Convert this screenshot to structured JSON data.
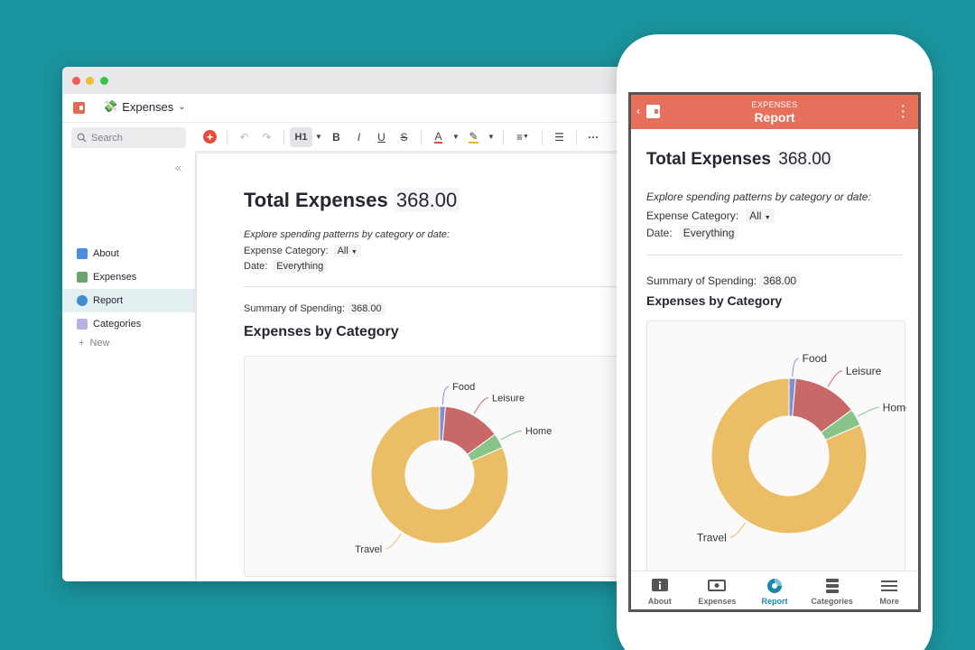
{
  "desktop": {
    "doc_title": "Expenses",
    "search_placeholder": "Search",
    "pages": [
      {
        "label": "About"
      },
      {
        "label": "Expenses"
      },
      {
        "label": "Report"
      },
      {
        "label": "Categories"
      }
    ],
    "new_label": "New",
    "toolbar": {
      "heading": "H1",
      "bold": "B",
      "italic": "I",
      "underline": "U",
      "strike": "S",
      "more": "···"
    }
  },
  "report": {
    "title": "Total Expenses",
    "total": "368.00",
    "intro": "Explore spending patterns by category or date:",
    "category_label": "Expense Category:",
    "category_value": "All",
    "date_label": "Date:",
    "date_value": "Everything",
    "summary_label": "Summary of Spending:",
    "summary_value": "368.00",
    "chart_heading": "Expenses by Category"
  },
  "mobile": {
    "header_doc": "EXPENSES",
    "header_page": "Report",
    "nav": [
      {
        "label": "About"
      },
      {
        "label": "Expenses"
      },
      {
        "label": "Report"
      },
      {
        "label": "Categories"
      },
      {
        "label": "More"
      }
    ]
  },
  "colors": {
    "accent": "#e6705b",
    "food": "#7f8fd4",
    "leisure": "#c96868",
    "home": "#86c48a",
    "travel": "#ecbd67"
  },
  "chart_data": {
    "type": "pie",
    "donut": true,
    "categories": [
      "Food",
      "Leisure",
      "Home",
      "Travel"
    ],
    "values": [
      5,
      50,
      13,
      300
    ],
    "units": "share of 368.00 total",
    "title": "",
    "legend": "labels-outside"
  }
}
